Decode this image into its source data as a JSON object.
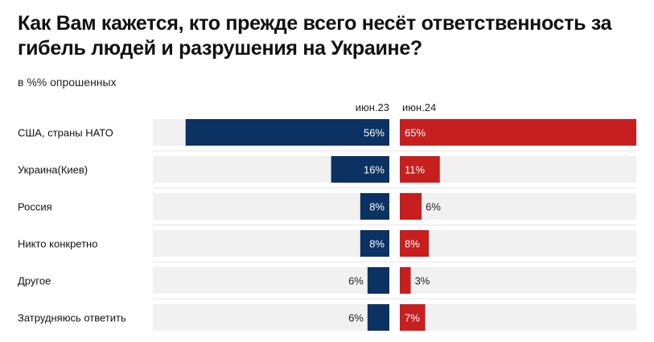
{
  "chart_data": {
    "type": "bar",
    "orientation": "horizontal",
    "title": "Как Вам кажется, кто прежде всего несёт ответственность за гибель людей и разрушения на Украине?",
    "subtitle": "в %% опрошенных",
    "categories": [
      "США, страны НАТО",
      "Украина(Киев)",
      "Россия",
      "Никто конкретно",
      "Другое",
      "Затрудняюсь ответить"
    ],
    "series": [
      {
        "name": "июн.23",
        "values": [
          56,
          16,
          8,
          8,
          6,
          6
        ],
        "color": "#0b3262"
      },
      {
        "name": "июн.24",
        "values": [
          65,
          11,
          6,
          8,
          3,
          7
        ],
        "color": "#c71f1f"
      }
    ],
    "value_suffix": "%",
    "xlim": [
      0,
      65
    ],
    "track_color": "#f1f1f1"
  }
}
